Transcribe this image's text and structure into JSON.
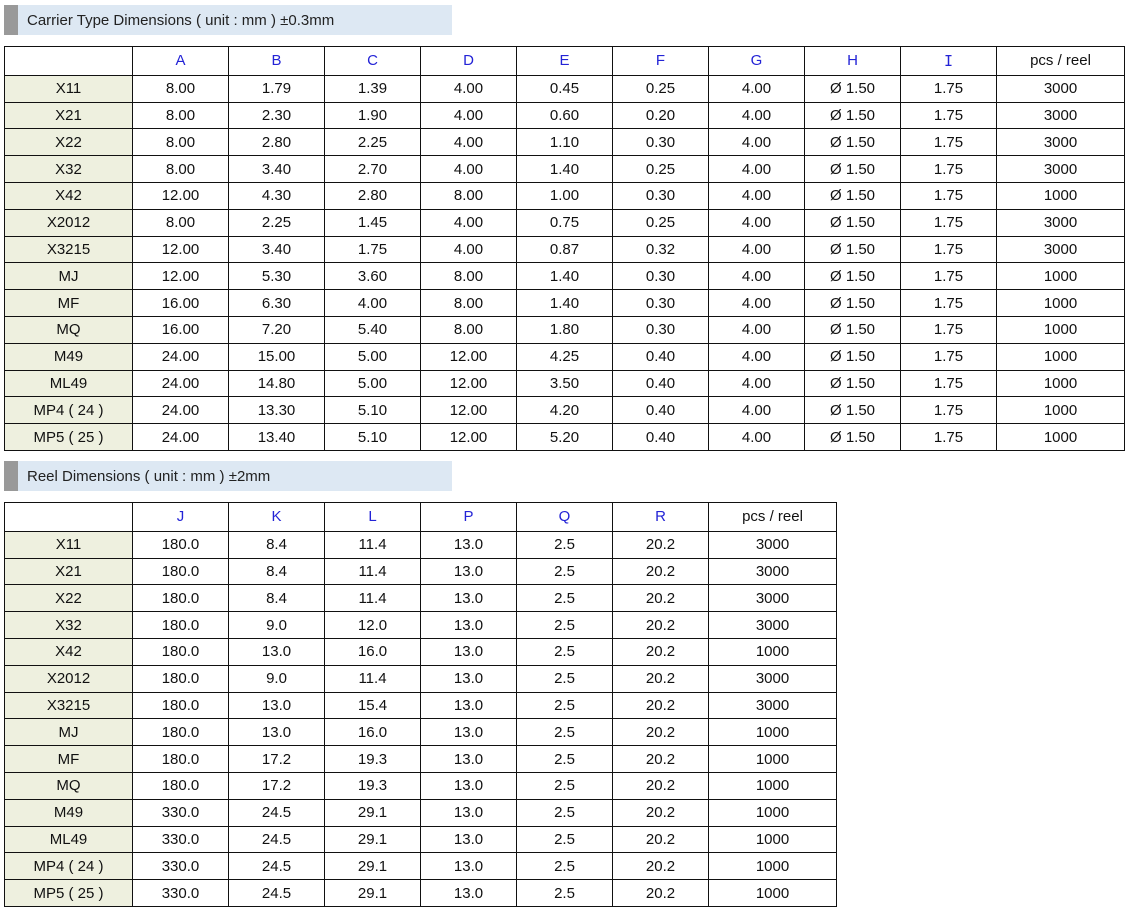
{
  "carrier": {
    "title": "Carrier Type Dimensions ( unit : mm ) ±0.3mm",
    "headers": [
      "",
      "A",
      "B",
      "C",
      "D",
      "E",
      "F",
      "G",
      "H",
      "I",
      "pcs / reel"
    ],
    "rows": [
      [
        "X11",
        "8.00",
        "1.79",
        "1.39",
        "4.00",
        "0.45",
        "0.25",
        "4.00",
        "Ø 1.50",
        "1.75",
        "3000"
      ],
      [
        "X21",
        "8.00",
        "2.30",
        "1.90",
        "4.00",
        "0.60",
        "0.20",
        "4.00",
        "Ø 1.50",
        "1.75",
        "3000"
      ],
      [
        "X22",
        "8.00",
        "2.80",
        "2.25",
        "4.00",
        "1.10",
        "0.30",
        "4.00",
        "Ø 1.50",
        "1.75",
        "3000"
      ],
      [
        "X32",
        "8.00",
        "3.40",
        "2.70",
        "4.00",
        "1.40",
        "0.25",
        "4.00",
        "Ø 1.50",
        "1.75",
        "3000"
      ],
      [
        "X42",
        "12.00",
        "4.30",
        "2.80",
        "8.00",
        "1.00",
        "0.30",
        "4.00",
        "Ø 1.50",
        "1.75",
        "1000"
      ],
      [
        "X2012",
        "8.00",
        "2.25",
        "1.45",
        "4.00",
        "0.75",
        "0.25",
        "4.00",
        "Ø 1.50",
        "1.75",
        "3000"
      ],
      [
        "X3215",
        "12.00",
        "3.40",
        "1.75",
        "4.00",
        "0.87",
        "0.32",
        "4.00",
        "Ø 1.50",
        "1.75",
        "3000"
      ],
      [
        "MJ",
        "12.00",
        "5.30",
        "3.60",
        "8.00",
        "1.40",
        "0.30",
        "4.00",
        "Ø 1.50",
        "1.75",
        "1000"
      ],
      [
        "MF",
        "16.00",
        "6.30",
        "4.00",
        "8.00",
        "1.40",
        "0.30",
        "4.00",
        "Ø 1.50",
        "1.75",
        "1000"
      ],
      [
        "MQ",
        "16.00",
        "7.20",
        "5.40",
        "8.00",
        "1.80",
        "0.30",
        "4.00",
        "Ø 1.50",
        "1.75",
        "1000"
      ],
      [
        "M49",
        "24.00",
        "15.00",
        "5.00",
        "12.00",
        "4.25",
        "0.40",
        "4.00",
        "Ø 1.50",
        "1.75",
        "1000"
      ],
      [
        "ML49",
        "24.00",
        "14.80",
        "5.00",
        "12.00",
        "3.50",
        "0.40",
        "4.00",
        "Ø 1.50",
        "1.75",
        "1000"
      ],
      [
        "MP4 ( 24 )",
        "24.00",
        "13.30",
        "5.10",
        "12.00",
        "4.20",
        "0.40",
        "4.00",
        "Ø 1.50",
        "1.75",
        "1000"
      ],
      [
        "MP5 ( 25 )",
        "24.00",
        "13.40",
        "5.10",
        "12.00",
        "5.20",
        "0.40",
        "4.00",
        "Ø 1.50",
        "1.75",
        "1000"
      ]
    ]
  },
  "reel": {
    "title": "Reel Dimensions ( unit : mm ) ±2mm",
    "headers": [
      "",
      "J",
      "K",
      "L",
      "P",
      "Q",
      "R",
      "pcs / reel"
    ],
    "rows": [
      [
        "X11",
        "180.0",
        "8.4",
        "11.4",
        "13.0",
        "2.5",
        "20.2",
        "3000"
      ],
      [
        "X21",
        "180.0",
        "8.4",
        "11.4",
        "13.0",
        "2.5",
        "20.2",
        "3000"
      ],
      [
        "X22",
        "180.0",
        "8.4",
        "11.4",
        "13.0",
        "2.5",
        "20.2",
        "3000"
      ],
      [
        "X32",
        "180.0",
        "9.0",
        "12.0",
        "13.0",
        "2.5",
        "20.2",
        "3000"
      ],
      [
        "X42",
        "180.0",
        "13.0",
        "16.0",
        "13.0",
        "2.5",
        "20.2",
        "1000"
      ],
      [
        "X2012",
        "180.0",
        "9.0",
        "11.4",
        "13.0",
        "2.5",
        "20.2",
        "3000"
      ],
      [
        "X3215",
        "180.0",
        "13.0",
        "15.4",
        "13.0",
        "2.5",
        "20.2",
        "3000"
      ],
      [
        "MJ",
        "180.0",
        "13.0",
        "16.0",
        "13.0",
        "2.5",
        "20.2",
        "1000"
      ],
      [
        "MF",
        "180.0",
        "17.2",
        "19.3",
        "13.0",
        "2.5",
        "20.2",
        "1000"
      ],
      [
        "MQ",
        "180.0",
        "17.2",
        "19.3",
        "13.0",
        "2.5",
        "20.2",
        "1000"
      ],
      [
        "M49",
        "330.0",
        "24.5",
        "29.1",
        "13.0",
        "2.5",
        "20.2",
        "1000"
      ],
      [
        "ML49",
        "330.0",
        "24.5",
        "29.1",
        "13.0",
        "2.5",
        "20.2",
        "1000"
      ],
      [
        "MP4 ( 24 )",
        "330.0",
        "24.5",
        "29.1",
        "13.0",
        "2.5",
        "20.2",
        "1000"
      ],
      [
        "MP5 ( 25 )",
        "330.0",
        "24.5",
        "29.1",
        "13.0",
        "2.5",
        "20.2",
        "1000"
      ]
    ]
  }
}
